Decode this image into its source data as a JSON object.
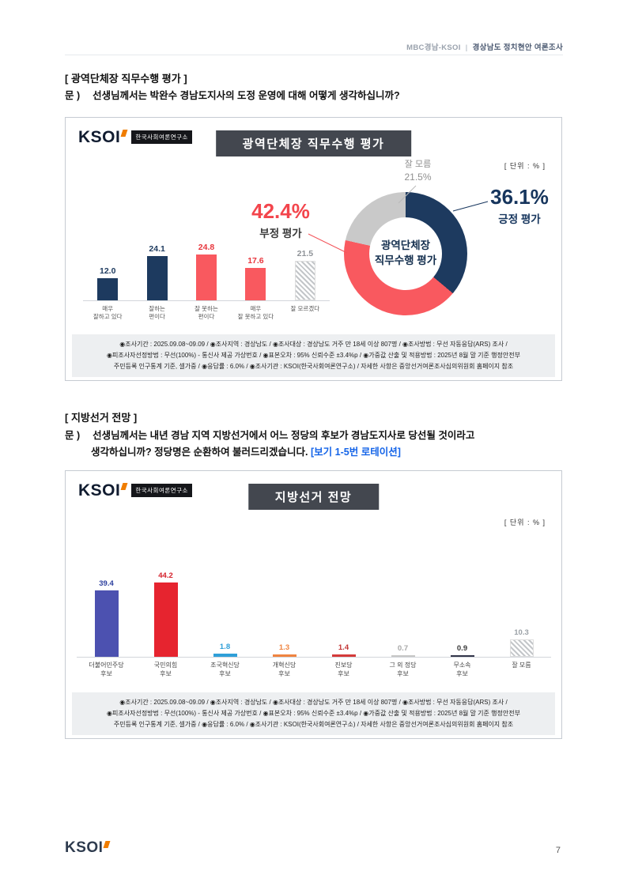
{
  "header": {
    "brand": "MBC경남-KSOI",
    "divider": "|",
    "title": "경상남도 정치현안 여론조사"
  },
  "logo": {
    "text": "KSOI",
    "subtitle": "한국사회여론연구소"
  },
  "section1": {
    "heading": "[ 광역단체장 직무수행 평가 ]",
    "question_label": "문 )",
    "question_text": "선생님께서는 박완수 경남도지사의 도정 운영에 대해 어떻게 생각하십니까?",
    "panel_title": "광역단체장 직무수행 평가",
    "unit_label": "[ 단위 : % ]",
    "donut_center_line1": "광역단체장",
    "donut_center_line2": "직무수행 평가",
    "callout_unknown_label": "잘 모름",
    "callout_unknown_value": "21.5%",
    "callout_negative_value": "42.4%",
    "callout_negative_label": "부정 평가",
    "callout_positive_value": "36.1%",
    "callout_positive_label": "긍정 평가",
    "footnote_lines": [
      "◉조사기간 : 2025.09.08~09.09 / ◉조사지역 : 경상남도 / ◉조사대상 : 경상남도 거주 만 18세 이상 807명 / ◉조사방법 : 무선 자동응답(ARS) 조사 /",
      "◉피조사자선정방법 : 무선(100%) - 통신사 제공 가상번호 / ◉표본오차 : 95% 신뢰수준 ±3.4%p / ◉가중값 산출 및 적용방법 : 2025년 8월 말 기준 행정안전부",
      "주민등록 인구통계 기준, 셀가중 / ◉응답률 : 6.0% / ◉조사기관 : KSOI(한국사회여론연구소) / 자세한 사항은 중앙선거여론조사심의위원회 홈페이지 참조"
    ]
  },
  "section2": {
    "heading": "[ 지방선거 전망 ]",
    "question_label": "문 )",
    "question_line1": "선생님께서는 내년 경남 지역 지방선거에서 어느 정당의 후보가 경남도지사로 당선될 것이라고",
    "question_line2": "생각하십니까? 정당명은 순환하여 불러드리겠습니다.",
    "question_note": "[보기 1-5번 로테이션]",
    "panel_title": "지방선거 전망",
    "unit_label": "[ 단위 : % ]",
    "footnote_lines": [
      "◉조사기간 : 2025.09.08~09.09 / ◉조사지역 : 경상남도 / ◉조사대상 : 경상남도 거주 만 18세 이상 807명 / ◉조사방법 : 무선 자동응답(ARS) 조사 /",
      "◉피조사자선정방법 : 무선(100%) - 통신사 제공 가상번호 / ◉표본오차 : 95% 신뢰수준 ±3.4%p / ◉가중값 산출 및 적용방법 : 2025년 8월 말 기준 행정안전부",
      "주민등록 인구통계 기준, 셀가중 / ◉응답률 : 6.0% / ◉조사기관 : KSOI(한국사회여론연구소) / 자세한 사항은 중앙선거여론조사심의위원회 홈페이지 참조"
    ]
  },
  "footer": {
    "page_number": "7"
  },
  "chart_data": [
    {
      "id": "governor-performance-bars",
      "type": "bar",
      "title": "광역단체장 직무수행 평가",
      "unit": "%",
      "categories": [
        "매우|잘하고 있다",
        "잘하는|편이다",
        "잘 못하는|편이다",
        "매우|잘 못하고 있다",
        "잘 모르겠다"
      ],
      "values": [
        12.0,
        24.1,
        24.8,
        17.6,
        21.5
      ],
      "colors": [
        "#1d3a5f",
        "#1d3a5f",
        "#f9595f",
        "#f9595f",
        "hatch"
      ],
      "label_colors": [
        "#1d3a5f",
        "#1d3a5f",
        "#e8363d",
        "#e8363d",
        "#8f9398"
      ],
      "ylim": [
        0,
        50
      ],
      "grid": false,
      "legend": false
    },
    {
      "id": "governor-performance-donut",
      "type": "pie",
      "title": "광역단체장 직무수행 평가",
      "unit": "%",
      "slices": [
        {
          "label": "긍정 평가",
          "value": 36.1,
          "color": "#1d3a5f"
        },
        {
          "label": "부정 평가",
          "value": 42.4,
          "color": "#f9595f"
        },
        {
          "label": "잘 모름",
          "value": 21.5,
          "color": "#c9c9c9"
        }
      ]
    },
    {
      "id": "local-election-outlook-bars",
      "type": "bar",
      "title": "지방선거 전망",
      "unit": "%",
      "categories": [
        "더불어민주당|후보",
        "국민의힘|후보",
        "조국혁신당|후보",
        "개혁신당|후보",
        "진보당|후보",
        "그 외 정당|후보",
        "무소속|후보",
        "잘 모름"
      ],
      "values": [
        39.4,
        44.2,
        1.8,
        1.3,
        1.4,
        0.7,
        0.9,
        10.3
      ],
      "colors": [
        "#4c51b0",
        "#e6242f",
        "#2f9fd8",
        "#ef8440",
        "#d43a3a",
        "#c7c7c7",
        "#33364a",
        "hatch"
      ],
      "label_colors": [
        "#2c3f9e",
        "#d5222c",
        "#2f9fd8",
        "#ef8440",
        "#c23333",
        "#a7a7a7",
        "#3a3a3a",
        "#9aa0a6"
      ],
      "ylim": [
        0,
        53
      ],
      "grid": false,
      "legend": false
    }
  ]
}
